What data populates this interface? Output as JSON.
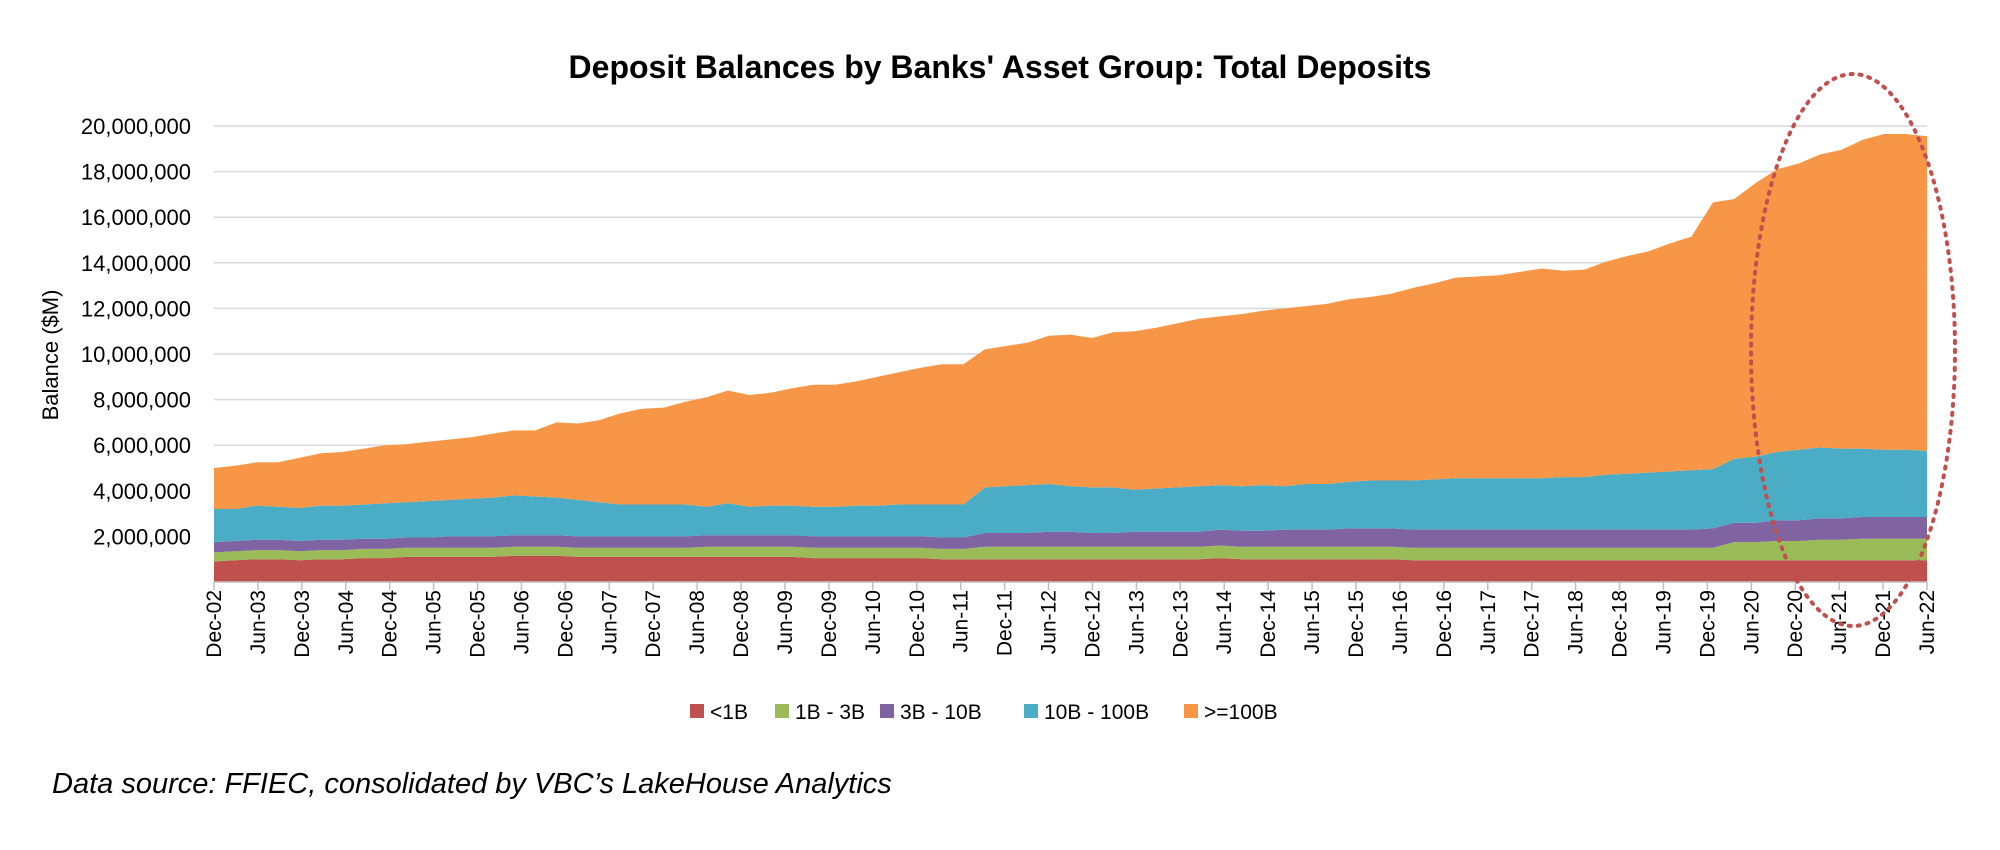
{
  "source_note": "Data source: FFIEC, consolidated by VBC’s LakeHouse Analytics",
  "colors": {
    "lt1b": "#c0504d",
    "b1to3": "#9bbb59",
    "b3to10": "#8064a2",
    "b10to100": "#4bacc6",
    "ge100b": "#f79646",
    "highlight": "#c0504d",
    "grid": "#d9d9d9"
  },
  "chart_data": {
    "type": "area",
    "stacked": true,
    "title": "Deposit Balances by Banks' Asset Group: Total Deposits",
    "xlabel": "",
    "ylabel": "Balance ($M)",
    "ylim": [
      0,
      20000000
    ],
    "yticks": [
      2000000,
      4000000,
      6000000,
      8000000,
      10000000,
      12000000,
      14000000,
      16000000,
      18000000,
      20000000
    ],
    "ytick_labels": [
      "2,000,000",
      "4,000,000",
      "6,000,000",
      "8,000,000",
      "10,000,000",
      "12,000,000",
      "14,000,000",
      "16,000,000",
      "18,000,000",
      "20,000,000"
    ],
    "grid": true,
    "legend_position": "bottom",
    "annotation": "dotted ellipse highlighting Jun-20 to Jun-22",
    "x_labels": [
      "Dec-02",
      "Jun-03",
      "Dec-03",
      "Jun-04",
      "Dec-04",
      "Jun-05",
      "Dec-05",
      "Jun-06",
      "Dec-06",
      "Jun-07",
      "Dec-07",
      "Jun-08",
      "Dec-08",
      "Jun-09",
      "Dec-09",
      "Jun-10",
      "Dec-10",
      "Jun-11",
      "Dec-11",
      "Jun-12",
      "Dec-12",
      "Jun-13",
      "Dec-13",
      "Jun-14",
      "Dec-14",
      "Jun-15",
      "Dec-15",
      "Jun-16",
      "Dec-16",
      "Jun-17",
      "Dec-17",
      "Jun-18",
      "Dec-18",
      "Jun-19",
      "Dec-19",
      "Jun-20",
      "Dec-20",
      "Jun-21",
      "Dec-21",
      "Jun-22"
    ],
    "series": [
      {
        "name": "<1B",
        "color": "#c0504d",
        "values": [
          900000,
          950000,
          1000000,
          1000000,
          950000,
          1000000,
          1000000,
          1050000,
          1050000,
          1100000,
          1100000,
          1100000,
          1100000,
          1100000,
          1150000,
          1150000,
          1150000,
          1100000,
          1100000,
          1100000,
          1100000,
          1100000,
          1100000,
          1100000,
          1100000,
          1100000,
          1100000,
          1100000,
          1050000,
          1050000,
          1050000,
          1050000,
          1050000,
          1050000,
          1000000,
          1000000,
          1000000,
          1000000,
          1000000,
          1000000,
          1000000,
          1000000,
          1000000,
          1000000,
          1000000,
          1000000,
          1000000,
          1050000,
          1000000,
          1000000,
          1000000,
          1000000,
          1000000,
          1000000,
          1000000,
          1000000,
          950000,
          950000,
          950000,
          950000,
          950000,
          950000,
          950000,
          950000,
          950000,
          950000,
          950000,
          950000,
          950000,
          950000,
          950000,
          950000,
          950000,
          950000,
          950000,
          950000,
          950000,
          950000,
          950000,
          950000,
          950000
        ]
      },
      {
        "name": "1B - 3B",
        "color": "#9bbb59",
        "values": [
          400000,
          400000,
          400000,
          400000,
          400000,
          400000,
          400000,
          400000,
          400000,
          400000,
          400000,
          400000,
          400000,
          400000,
          400000,
          400000,
          400000,
          400000,
          400000,
          400000,
          400000,
          400000,
          400000,
          450000,
          450000,
          450000,
          450000,
          450000,
          450000,
          450000,
          450000,
          450000,
          450000,
          450000,
          450000,
          450000,
          550000,
          550000,
          550000,
          550000,
          550000,
          550000,
          550000,
          550000,
          550000,
          550000,
          550000,
          550000,
          550000,
          550000,
          550000,
          550000,
          550000,
          550000,
          550000,
          550000,
          550000,
          550000,
          550000,
          550000,
          550000,
          550000,
          550000,
          550000,
          550000,
          550000,
          550000,
          550000,
          550000,
          550000,
          550000,
          800000,
          800000,
          850000,
          850000,
          900000,
          900000,
          950000,
          950000,
          950000,
          950000
        ]
      },
      {
        "name": "3B - 10B",
        "color": "#8064a2",
        "values": [
          450000,
          450000,
          450000,
          450000,
          450000,
          450000,
          450000,
          450000,
          450000,
          450000,
          450000,
          500000,
          500000,
          500000,
          500000,
          500000,
          500000,
          500000,
          500000,
          500000,
          500000,
          500000,
          500000,
          500000,
          500000,
          500000,
          500000,
          500000,
          500000,
          500000,
          500000,
          500000,
          500000,
          500000,
          500000,
          500000,
          600000,
          600000,
          600000,
          650000,
          650000,
          600000,
          600000,
          650000,
          650000,
          650000,
          650000,
          700000,
          700000,
          700000,
          750000,
          750000,
          750000,
          800000,
          800000,
          800000,
          800000,
          800000,
          800000,
          800000,
          800000,
          800000,
          800000,
          800000,
          800000,
          800000,
          800000,
          800000,
          800000,
          800000,
          850000,
          850000,
          850000,
          900000,
          900000,
          950000,
          950000,
          950000,
          950000,
          950000,
          950000
        ]
      },
      {
        "name": "10B - 100B",
        "color": "#4bacc6",
        "values": [
          1450000,
          1400000,
          1500000,
          1450000,
          1450000,
          1500000,
          1500000,
          1500000,
          1550000,
          1550000,
          1600000,
          1600000,
          1650000,
          1700000,
          1750000,
          1700000,
          1650000,
          1600000,
          1500000,
          1400000,
          1400000,
          1400000,
          1400000,
          1250000,
          1400000,
          1250000,
          1300000,
          1300000,
          1300000,
          1300000,
          1350000,
          1350000,
          1400000,
          1400000,
          1450000,
          1450000,
          2000000,
          2050000,
          2100000,
          2100000,
          2000000,
          2000000,
          2000000,
          1850000,
          1900000,
          1950000,
          2000000,
          1950000,
          1950000,
          2000000,
          1900000,
          2000000,
          2000000,
          2050000,
          2100000,
          2100000,
          2150000,
          2200000,
          2250000,
          2250000,
          2250000,
          2250000,
          2250000,
          2300000,
          2300000,
          2400000,
          2450000,
          2500000,
          2550000,
          2600000,
          2600000,
          2800000,
          2900000,
          3000000,
          3100000,
          3100000,
          3050000,
          3000000,
          2950000,
          2950000,
          2900000
        ]
      },
      {
        "name": ">=100B",
        "color": "#f79646",
        "values": [
          1800000,
          1900000,
          1900000,
          1950000,
          2200000,
          2300000,
          2350000,
          2450000,
          2550000,
          2550000,
          2600000,
          2650000,
          2700000,
          2800000,
          2850000,
          2900000,
          3300000,
          3350000,
          3600000,
          4000000,
          4200000,
          4250000,
          4500000,
          4800000,
          4950000,
          4900000,
          4950000,
          5150000,
          5350000,
          5350000,
          5450000,
          5650000,
          5800000,
          6000000,
          6150000,
          6150000,
          6050000,
          6150000,
          6250000,
          6500000,
          6650000,
          6550000,
          6800000,
          6950000,
          7050000,
          7200000,
          7350000,
          7400000,
          7550000,
          7650000,
          7800000,
          7800000,
          7900000,
          8000000,
          8050000,
          8200000,
          8450000,
          8600000,
          8800000,
          8850000,
          8900000,
          9050000,
          9200000,
          9050000,
          9100000,
          9350000,
          9550000,
          9700000,
          10000000,
          10250000,
          11700000,
          11400000,
          12000000,
          12400000,
          12550000,
          12850000,
          13100000,
          13550000,
          13850000,
          13850000,
          13800000
        ]
      }
    ]
  }
}
